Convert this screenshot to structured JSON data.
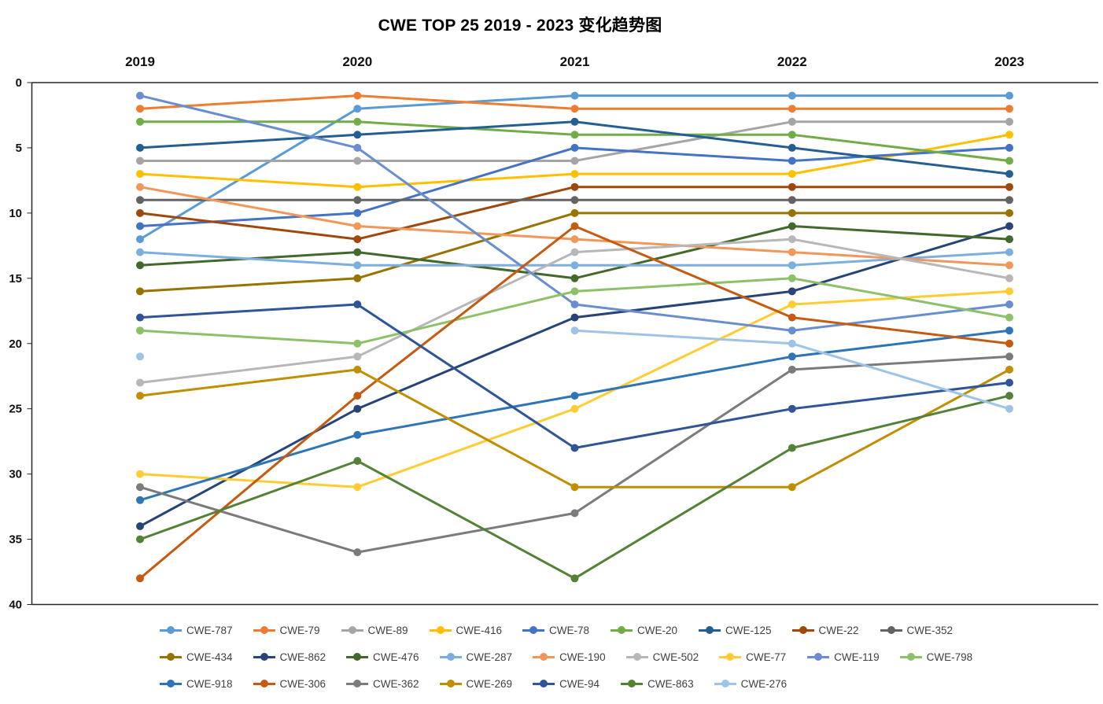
{
  "chart_data": {
    "type": "line",
    "title": "CWE TOP 25 2019 - 2023 变化趋势图",
    "categories": [
      "2019",
      "2020",
      "2021",
      "2022",
      "2023"
    ],
    "y_axis": {
      "min": 0,
      "max": 40,
      "tick_interval": 5,
      "ticks": [
        0,
        5,
        10,
        15,
        20,
        25,
        30,
        35,
        40
      ],
      "inverted": true
    },
    "legend_position": "bottom",
    "grid": false,
    "series": [
      {
        "name": "CWE-787",
        "color": "#5B9BD5",
        "values": [
          12,
          2,
          1,
          1,
          1
        ]
      },
      {
        "name": "CWE-79",
        "color": "#ED7D31",
        "values": [
          2,
          1,
          2,
          2,
          2
        ]
      },
      {
        "name": "CWE-89",
        "color": "#A5A5A5",
        "values": [
          6,
          6,
          6,
          3,
          3
        ]
      },
      {
        "name": "CWE-416",
        "color": "#FFC000",
        "values": [
          7,
          8,
          7,
          7,
          4
        ]
      },
      {
        "name": "CWE-78",
        "color": "#4472C4",
        "values": [
          11,
          10,
          5,
          6,
          5
        ]
      },
      {
        "name": "CWE-20",
        "color": "#70AD47",
        "values": [
          3,
          3,
          4,
          4,
          6
        ]
      },
      {
        "name": "CWE-125",
        "color": "#255E91",
        "values": [
          5,
          4,
          3,
          5,
          7
        ]
      },
      {
        "name": "CWE-22",
        "color": "#9E480E",
        "values": [
          10,
          12,
          8,
          8,
          8
        ]
      },
      {
        "name": "CWE-352",
        "color": "#636363",
        "values": [
          9,
          9,
          9,
          9,
          9
        ]
      },
      {
        "name": "CWE-434",
        "color": "#997300",
        "values": [
          16,
          15,
          10,
          10,
          10
        ]
      },
      {
        "name": "CWE-862",
        "color": "#264478",
        "values": [
          34,
          25,
          18,
          16,
          11
        ]
      },
      {
        "name": "CWE-476",
        "color": "#43682B",
        "values": [
          14,
          13,
          15,
          11,
          12
        ]
      },
      {
        "name": "CWE-287",
        "color": "#7CAFDD",
        "values": [
          13,
          14,
          14,
          14,
          13
        ]
      },
      {
        "name": "CWE-190",
        "color": "#F1975A",
        "values": [
          8,
          11,
          12,
          13,
          14
        ]
      },
      {
        "name": "CWE-502",
        "color": "#B7B7B7",
        "values": [
          23,
          21,
          13,
          12,
          15
        ]
      },
      {
        "name": "CWE-77",
        "color": "#FFCD33",
        "values": [
          30,
          31,
          25,
          17,
          16
        ]
      },
      {
        "name": "CWE-119",
        "color": "#698ED0",
        "values": [
          1,
          5,
          17,
          19,
          17
        ]
      },
      {
        "name": "CWE-798",
        "color": "#8CC168",
        "values": [
          19,
          20,
          16,
          15,
          18
        ]
      },
      {
        "name": "CWE-918",
        "color": "#2E75B6",
        "values": [
          32,
          27,
          24,
          21,
          19
        ]
      },
      {
        "name": "CWE-306",
        "color": "#C55A11",
        "values": [
          38,
          24,
          11,
          18,
          20
        ]
      },
      {
        "name": "CWE-362",
        "color": "#7B7B7B",
        "values": [
          31,
          36,
          33,
          22,
          21
        ]
      },
      {
        "name": "CWE-269",
        "color": "#BF8F00",
        "values": [
          24,
          22,
          31,
          31,
          22
        ]
      },
      {
        "name": "CWE-94",
        "color": "#2F5597",
        "values": [
          18,
          17,
          28,
          25,
          23
        ]
      },
      {
        "name": "CWE-863",
        "color": "#538135",
        "values": [
          35,
          29,
          38,
          28,
          24
        ]
      },
      {
        "name": "CWE-276",
        "color": "#9DC3E6",
        "values": [
          21,
          null,
          19,
          20,
          25
        ]
      }
    ]
  }
}
